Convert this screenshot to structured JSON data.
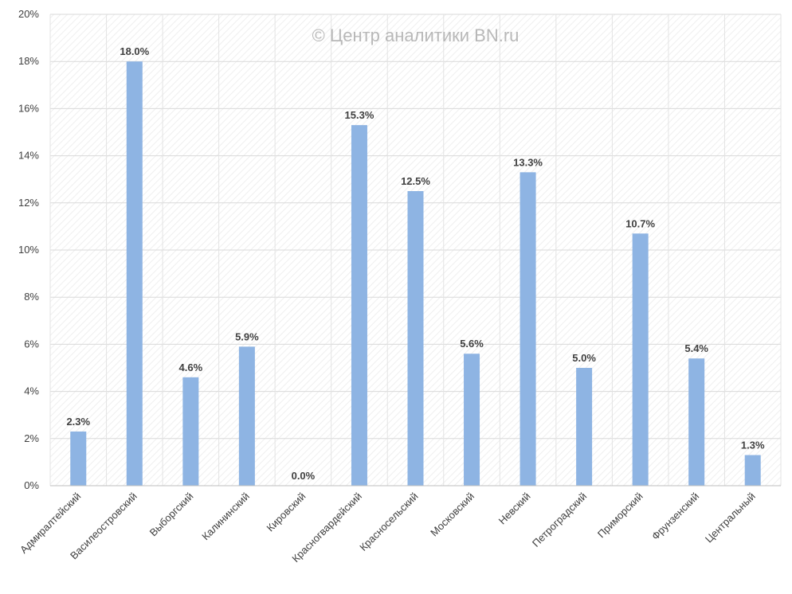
{
  "chart_data": {
    "type": "bar",
    "title": "",
    "xlabel": "",
    "ylabel": "",
    "watermark": "© Центр аналитики BN.ru",
    "categories": [
      "Адмиралтейский",
      "Василеостровский",
      "Выборгский",
      "Калининский",
      "Кировский",
      "Красногвардейский",
      "Красносельский",
      "Московский",
      "Невский",
      "Петроградский",
      "Приморский",
      "Фрунзенский",
      "Центральный"
    ],
    "values": [
      2.3,
      18.0,
      4.6,
      5.9,
      0.0,
      15.3,
      12.5,
      5.6,
      13.3,
      5.0,
      10.7,
      5.4,
      1.3
    ],
    "data_labels": [
      "2.3%",
      "18.0%",
      "4.6%",
      "5.9%",
      "0.0%",
      "15.3%",
      "12.5%",
      "5.6%",
      "13.3%",
      "5.0%",
      "10.7%",
      "5.4%",
      "1.3%"
    ],
    "ylim": [
      0,
      20
    ],
    "yticks": [
      0,
      2,
      4,
      6,
      8,
      10,
      12,
      14,
      16,
      18,
      20
    ],
    "ytick_labels": [
      "0%",
      "2%",
      "4%",
      "6%",
      "8%",
      "10%",
      "12%",
      "14%",
      "16%",
      "18%",
      "20%"
    ],
    "grid": true,
    "legend": "none",
    "bar_color": "#8eb4e3",
    "grid_color": "#d9d9d9",
    "axis_color": "#bfbfbf"
  }
}
